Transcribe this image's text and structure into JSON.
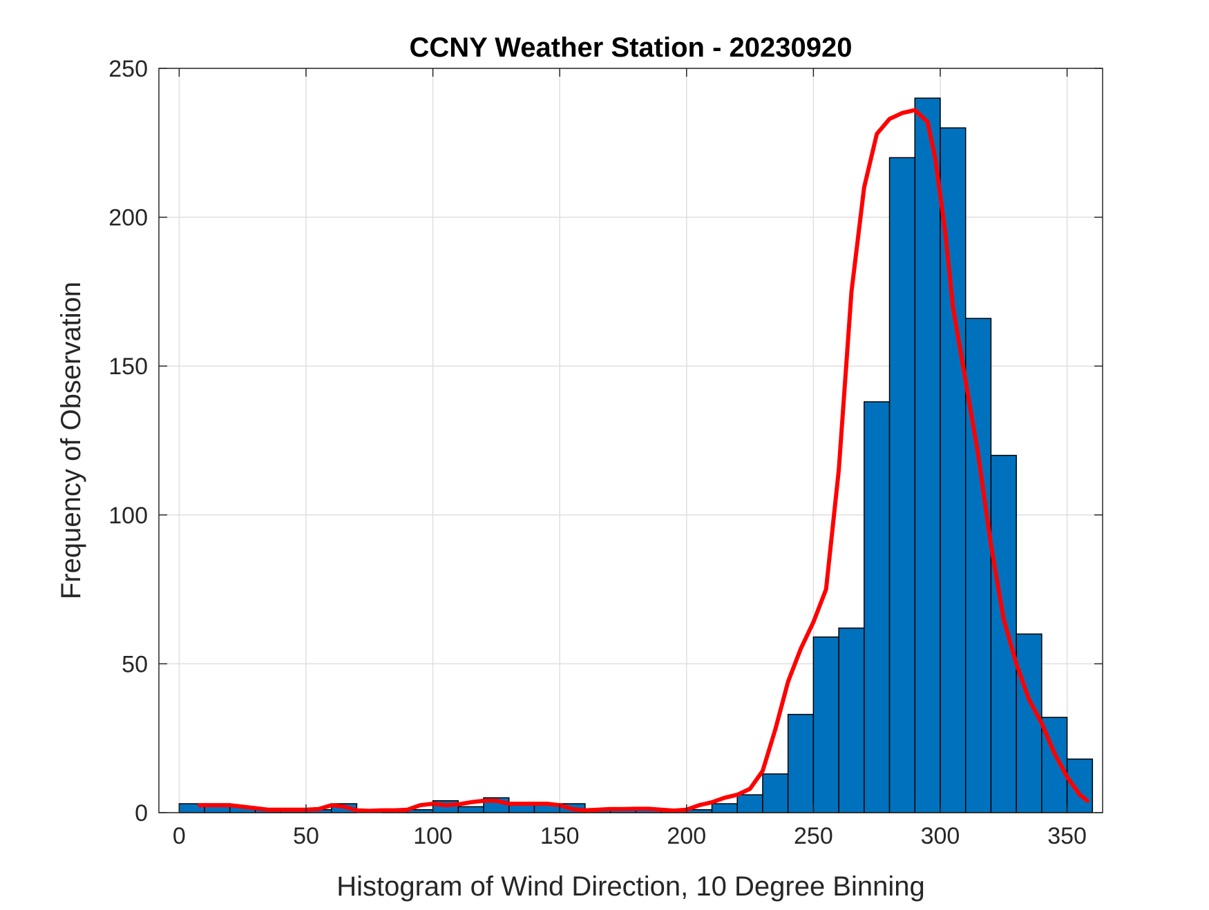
{
  "chart_data": {
    "type": "bar",
    "title": "CCNY Weather Station - 20230920",
    "xlabel": "Histogram of Wind Direction, 10 Degree Binning",
    "ylabel": "Frequency of Observation",
    "xlim": [
      -8,
      364
    ],
    "ylim": [
      0,
      250
    ],
    "xticks": [
      0,
      50,
      100,
      150,
      200,
      250,
      300,
      350
    ],
    "yticks": [
      0,
      50,
      100,
      150,
      200,
      250
    ],
    "grid": true,
    "bin_width": 10,
    "bins": [
      {
        "start": 0,
        "count": 3
      },
      {
        "start": 10,
        "count": 3
      },
      {
        "start": 20,
        "count": 2
      },
      {
        "start": 30,
        "count": 1
      },
      {
        "start": 40,
        "count": 1
      },
      {
        "start": 50,
        "count": 1
      },
      {
        "start": 60,
        "count": 3
      },
      {
        "start": 70,
        "count": 0
      },
      {
        "start": 80,
        "count": 1
      },
      {
        "start": 90,
        "count": 1
      },
      {
        "start": 100,
        "count": 4
      },
      {
        "start": 110,
        "count": 2
      },
      {
        "start": 120,
        "count": 5
      },
      {
        "start": 130,
        "count": 3
      },
      {
        "start": 140,
        "count": 3
      },
      {
        "start": 150,
        "count": 3
      },
      {
        "start": 160,
        "count": 1
      },
      {
        "start": 170,
        "count": 1
      },
      {
        "start": 180,
        "count": 1
      },
      {
        "start": 190,
        "count": 1
      },
      {
        "start": 200,
        "count": 1
      },
      {
        "start": 210,
        "count": 3
      },
      {
        "start": 220,
        "count": 6
      },
      {
        "start": 230,
        "count": 13
      },
      {
        "start": 240,
        "count": 33
      },
      {
        "start": 250,
        "count": 59
      },
      {
        "start": 260,
        "count": 62
      },
      {
        "start": 270,
        "count": 138
      },
      {
        "start": 280,
        "count": 220
      },
      {
        "start": 290,
        "count": 240
      },
      {
        "start": 300,
        "count": 230
      },
      {
        "start": 310,
        "count": 166
      },
      {
        "start": 320,
        "count": 120
      },
      {
        "start": 330,
        "count": 60
      },
      {
        "start": 340,
        "count": 32
      },
      {
        "start": 350,
        "count": 18
      }
    ],
    "fit_curve": {
      "x": [
        8,
        15,
        20,
        25,
        30,
        35,
        40,
        45,
        50,
        55,
        60,
        65,
        70,
        75,
        80,
        85,
        90,
        95,
        100,
        105,
        110,
        115,
        120,
        125,
        130,
        135,
        140,
        145,
        150,
        155,
        160,
        165,
        170,
        175,
        180,
        185,
        190,
        195,
        200,
        205,
        210,
        215,
        220,
        225,
        230,
        235,
        240,
        245,
        250,
        255,
        260,
        265,
        270,
        275,
        280,
        285,
        290,
        295,
        298,
        302,
        305,
        310,
        315,
        320,
        325,
        330,
        335,
        340,
        345,
        350,
        355,
        358
      ],
      "y": [
        2.5,
        2.5,
        2.5,
        2,
        1.5,
        1,
        1,
        1,
        1,
        1.2,
        2.5,
        2,
        0.8,
        0.6,
        0.8,
        0.8,
        1,
        2.5,
        3,
        2.5,
        2.8,
        3.5,
        4,
        4,
        3,
        3,
        3,
        3,
        2.5,
        1.2,
        0.8,
        1,
        1.2,
        1.2,
        1.3,
        1.3,
        1,
        0.7,
        1,
        2.5,
        3.5,
        5,
        6,
        8,
        14,
        28,
        44,
        55,
        64,
        75,
        115,
        175,
        210,
        228,
        233,
        235,
        236,
        232,
        220,
        195,
        170,
        145,
        120,
        90,
        65,
        50,
        38,
        30,
        20,
        12,
        6,
        4
      ],
      "color": "#ff0000"
    },
    "colors": {
      "bar_fill": "#0072bd",
      "bar_edge": "#000000",
      "grid": "#dfdfdf",
      "axes": "#262626"
    }
  }
}
